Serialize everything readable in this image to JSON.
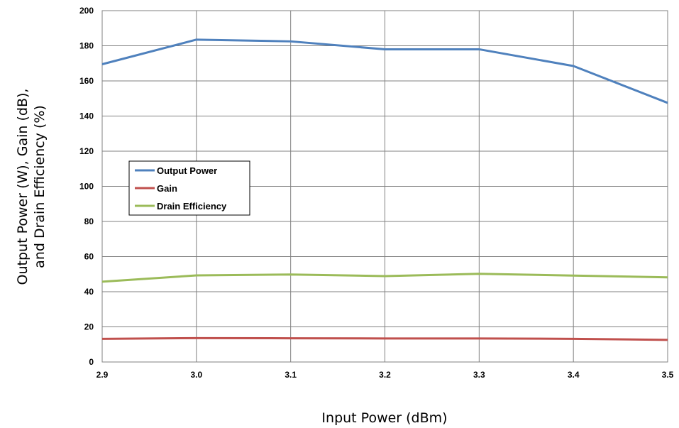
{
  "chart_data": {
    "type": "line",
    "x": [
      2.9,
      3.0,
      3.1,
      3.2,
      3.3,
      3.4,
      3.5
    ],
    "x_tick_labels": [
      "2.9",
      "3.0",
      "3.1",
      "3.2",
      "3.3",
      "3.4",
      "3.5"
    ],
    "y_tick_labels": [
      "0",
      "20",
      "40",
      "60",
      "80",
      "100",
      "120",
      "140",
      "160",
      "180",
      "200"
    ],
    "xlim": [
      2.9,
      3.5
    ],
    "ylim": [
      0,
      200
    ],
    "xlabel": "Input Power (dBm)",
    "ylabel_line1": "Output Power (W), Gain (dB),",
    "ylabel_line2": "and Drain Efficiency (%)",
    "grid": true,
    "legend_position": "center-left",
    "series": [
      {
        "name": "Output Power",
        "color": "#4F81BD",
        "values": [
          169.5,
          183.5,
          182.5,
          178,
          178,
          168.5,
          147.5
        ]
      },
      {
        "name": "Gain",
        "color": "#C0504D",
        "values": [
          13.2,
          13.6,
          13.5,
          13.4,
          13.4,
          13.2,
          12.6
        ]
      },
      {
        "name": "Drain Efficiency",
        "color": "#9BBB59",
        "values": [
          45.7,
          49.3,
          49.8,
          48.9,
          50.2,
          49.2,
          48.2
        ]
      }
    ]
  }
}
